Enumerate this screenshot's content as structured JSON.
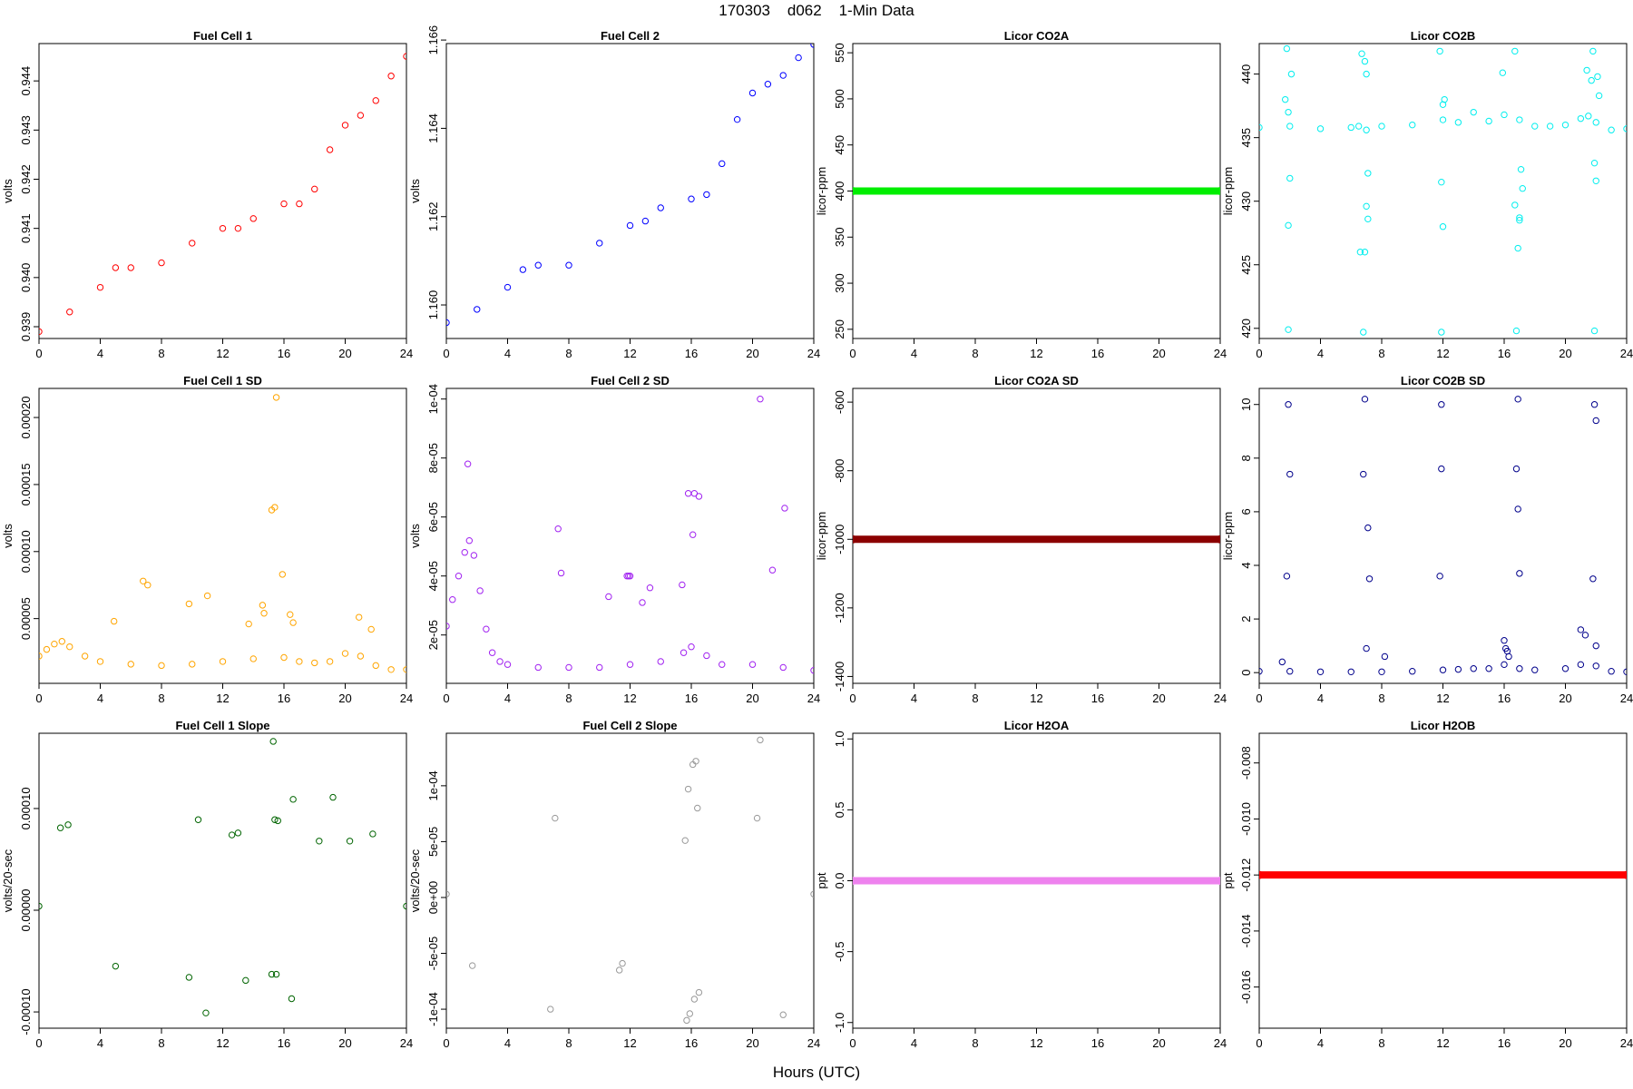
{
  "header": {
    "title": "170303    d062    1-Min Data"
  },
  "x_axis_label": "Hours (UTC)",
  "chart_data": [
    {
      "id": "fc1",
      "title": "Fuel Cell 1",
      "type": "scatter",
      "ylabel": "volts",
      "color": "#ff0000",
      "filled": false,
      "xlim": [
        0,
        24
      ],
      "xticks": [
        "0",
        "4",
        "8",
        "12",
        "16",
        "20",
        "24"
      ],
      "ylim": [
        0.93876,
        0.94476
      ],
      "yticks": [
        "0.939",
        "0.940",
        "0.941",
        "0.942",
        "0.943",
        "0.944"
      ],
      "series": [
        {
          "x": [
            0,
            2,
            4,
            5,
            6,
            8,
            10,
            12,
            13,
            14,
            16,
            17,
            18,
            19,
            20,
            21,
            22,
            23,
            24
          ],
          "values": [
            0.9389,
            0.9393,
            0.9398,
            0.9402,
            0.9402,
            0.9403,
            0.9407,
            0.941,
            0.941,
            0.9412,
            0.9415,
            0.9415,
            0.9418,
            0.9426,
            0.9431,
            0.9433,
            0.9436,
            0.9441,
            0.9445
          ]
        }
      ]
    },
    {
      "id": "fc2",
      "title": "Fuel Cell 2",
      "type": "scatter",
      "ylabel": "volts",
      "color": "#0000ff",
      "filled": false,
      "xlim": [
        0,
        24
      ],
      "xticks": [
        "0",
        "4",
        "8",
        "12",
        "16",
        "20",
        "24"
      ],
      "ylim": [
        1.15924,
        1.16592
      ],
      "yticks": [
        "1.160",
        "1.162",
        "1.164",
        "1.166"
      ],
      "series": [
        {
          "x": [
            0,
            2,
            4,
            5,
            6,
            8,
            10,
            12,
            13,
            14,
            16,
            17,
            18,
            19,
            20,
            21,
            22,
            23,
            24
          ],
          "values": [
            1.1596,
            1.1599,
            1.1604,
            1.1608,
            1.1609,
            1.1609,
            1.1614,
            1.1618,
            1.1619,
            1.1622,
            1.1624,
            1.1625,
            1.1632,
            1.1642,
            1.1648,
            1.165,
            1.1652,
            1.1656,
            1.1659
          ]
        }
      ]
    },
    {
      "id": "co2a",
      "title": "Licor CO2A",
      "type": "scatter",
      "ylabel": "licor-ppm",
      "color": "#00ee00",
      "filled": true,
      "xlim": [
        0,
        24
      ],
      "xticks": [
        "0",
        "4",
        "8",
        "12",
        "16",
        "20",
        "24"
      ],
      "ylim": [
        240,
        560
      ],
      "yticks": [
        "250",
        "300",
        "350",
        "400",
        "450",
        "500",
        "550"
      ],
      "series": [
        {
          "x": [
            0,
            24
          ],
          "values": [
            400,
            400
          ]
        }
      ]
    },
    {
      "id": "co2b",
      "title": "Licor CO2B",
      "type": "scatter",
      "ylabel": "licor-ppm",
      "color": "#00eeee",
      "filled": false,
      "xlim": [
        0,
        24
      ],
      "xticks": [
        "0",
        "4",
        "8",
        "12",
        "16",
        "20",
        "24"
      ],
      "ylim": [
        419.2,
        442.4
      ],
      "yticks": [
        "420",
        "425",
        "430",
        "435",
        "440"
      ],
      "series": [
        {
          "x": [
            0,
            2,
            4,
            6,
            6.5,
            7,
            8,
            10,
            12,
            13,
            14,
            15,
            16,
            17,
            18,
            19,
            20,
            21,
            21.5,
            22,
            23,
            24
          ],
          "values": [
            435.8,
            435.9,
            435.7,
            435.8,
            435.9,
            435.6,
            435.9,
            436.0,
            436.4,
            436.2,
            437.0,
            436.3,
            436.8,
            436.4,
            435.9,
            435.9,
            436.0,
            436.5,
            436.7,
            436.2,
            435.6,
            435.7
          ]
        },
        {
          "x": [
            1.8,
            1.9,
            2.0,
            1.9,
            6.7,
            6.8,
            6.9,
            7.0,
            7.1,
            11.8,
            11.9,
            12.0,
            16.7,
            16.8,
            16.9,
            17.0,
            21.8,
            21.9,
            22.0,
            22.1,
            1.7,
            1.9,
            6.9,
            12.0,
            17.1,
            21.7,
            21.9,
            6.6,
            16.7,
            7.0,
            11.9,
            17.0,
            17.2,
            2.1,
            7.1,
            12.1,
            15.9,
            21.4,
            22.2
          ],
          "values": [
            442,
            419.9,
            431.8,
            428.1,
            441.6,
            419.7,
            426,
            429.6,
            428.6,
            441.8,
            419.7,
            428,
            441.8,
            419.8,
            426.3,
            428.7,
            441.8,
            419.8,
            431.6,
            439.8,
            438,
            437,
            441,
            437.6,
            432.5,
            439.5,
            433,
            426,
            429.7,
            440,
            431.5,
            428.5,
            431,
            440,
            432.2,
            438,
            440.1,
            440.3,
            438.3
          ]
        }
      ]
    },
    {
      "id": "fc1sd",
      "title": "Fuel Cell 1 SD",
      "type": "scatter",
      "ylabel": "volts",
      "color": "#ffa500",
      "filled": false,
      "xlim": [
        0,
        24
      ],
      "xticks": [
        "0",
        "4",
        "8",
        "12",
        "16",
        "20",
        "24"
      ],
      "ylim": [
        1.7e-06,
        0.0002217
      ],
      "yticks": [
        "0.00005",
        "0.00010",
        "0.00015",
        "0.00020"
      ],
      "series": [
        {
          "x": [
            0,
            0.5,
            1,
            1.5,
            2,
            3,
            4,
            6,
            8,
            10,
            12,
            14,
            16,
            17,
            18,
            19,
            20,
            21,
            22,
            23,
            24
          ],
          "values": [
            2.2e-05,
            2.7e-05,
            3.1e-05,
            3.3e-05,
            2.9e-05,
            2.2e-05,
            1.8e-05,
            1.6e-05,
            1.5e-05,
            1.6e-05,
            1.8e-05,
            2e-05,
            2.1e-05,
            1.8e-05,
            1.7e-05,
            1.8e-05,
            2.4e-05,
            2.2e-05,
            1.5e-05,
            1.2e-05,
            1.2e-05
          ]
        },
        {
          "x": [
            15.5,
            15.2,
            15.4,
            15.9,
            6.8,
            7.1,
            11,
            14.6,
            16.4,
            16.6,
            13.7,
            9.8,
            4.9,
            20.9,
            21.7,
            14.7
          ],
          "values": [
            0.000215,
            0.000131,
            0.000133,
            8.3e-05,
            7.8e-05,
            7.5e-05,
            6.7e-05,
            6e-05,
            5.3e-05,
            4.7e-05,
            4.6e-05,
            6.1e-05,
            4.8e-05,
            5.1e-05,
            4.2e-05,
            5.4e-05
          ]
        }
      ]
    },
    {
      "id": "fc2sd",
      "title": "Fuel Cell 2 SD",
      "type": "scatter",
      "ylabel": "volts",
      "color": "#a020f0",
      "filled": false,
      "xlim": [
        0,
        24
      ],
      "xticks": [
        "0",
        "4",
        "8",
        "12",
        "16",
        "20",
        "24"
      ],
      "ylim": [
        3.6e-06,
        0.0001036
      ],
      "yticks": [
        "2e-05",
        "4e-05",
        "6e-05",
        "8e-05",
        "1e-04"
      ],
      "series": [
        {
          "x": [
            0,
            0.4,
            0.8,
            1.2,
            1.5,
            1.8,
            2.2,
            2.6,
            3,
            3.5,
            4,
            6,
            8,
            10,
            12,
            14,
            15.5,
            16,
            17,
            18,
            20,
            22,
            24
          ],
          "values": [
            2.3e-05,
            3.2e-05,
            4e-05,
            4.8e-05,
            5.2e-05,
            4.7e-05,
            3.5e-05,
            2.2e-05,
            1.4e-05,
            1.1e-05,
            1e-05,
            9e-06,
            9e-06,
            9e-06,
            1e-05,
            1.1e-05,
            1.4e-05,
            1.6e-05,
            1.3e-05,
            1e-05,
            1e-05,
            9e-06,
            8e-06
          ]
        },
        {
          "x": [
            20.5,
            1.4,
            15.8,
            16.2,
            16.5,
            7.3,
            7.5,
            16.1,
            22.1,
            21.3,
            13.3,
            11.8,
            11.9,
            12,
            12.8,
            10.6,
            15.4
          ],
          "values": [
            0.0001,
            7.8e-05,
            6.8e-05,
            6.8e-05,
            6.7e-05,
            5.6e-05,
            4.1e-05,
            5.4e-05,
            6.3e-05,
            4.2e-05,
            3.6e-05,
            4e-05,
            4e-05,
            4e-05,
            3.1e-05,
            3.3e-05,
            3.7e-05
          ]
        }
      ]
    },
    {
      "id": "co2asd",
      "title": "Licor CO2A SD",
      "type": "scatter",
      "ylabel": "licor-ppm",
      "color": "#8b0000",
      "filled": true,
      "xlim": [
        0,
        24
      ],
      "xticks": [
        "0",
        "4",
        "8",
        "12",
        "16",
        "20",
        "24"
      ],
      "ylim": [
        -1420,
        -560
      ],
      "yticks": [
        "-1400",
        "-1200",
        "-1000",
        "-800",
        "-600"
      ],
      "series": [
        {
          "x": [
            0,
            24
          ],
          "values": [
            -1000,
            -1000
          ]
        }
      ]
    },
    {
      "id": "co2bsd",
      "title": "Licor CO2B SD",
      "type": "scatter",
      "ylabel": "licor-ppm",
      "color": "#00008b",
      "filled": false,
      "xlim": [
        0,
        24
      ],
      "xticks": [
        "0",
        "4",
        "8",
        "12",
        "16",
        "20",
        "24"
      ],
      "ylim": [
        -0.4,
        10.6
      ],
      "yticks": [
        "0",
        "2",
        "4",
        "6",
        "8",
        "10"
      ],
      "series": [
        {
          "x": [
            0,
            2,
            4,
            6,
            8,
            10,
            12,
            13,
            14,
            15,
            16,
            17,
            18,
            20,
            21,
            22,
            23,
            24
          ],
          "values": [
            0.05,
            0.05,
            0.03,
            0.03,
            0.03,
            0.05,
            0.1,
            0.12,
            0.15,
            0.15,
            0.3,
            0.15,
            0.1,
            0.15,
            0.3,
            0.25,
            0.05,
            0.03
          ]
        },
        {
          "x": [
            1.9,
            6.9,
            11.9,
            16.9,
            21.9,
            2.0,
            6.8,
            11.9,
            16.8,
            22.0,
            7.1,
            16.9,
            1.8,
            7.2,
            11.8,
            17.0,
            21.8,
            7.0,
            16.0,
            16.2,
            21.0,
            21.3,
            16.1,
            22.0,
            16.3,
            8.2,
            1.5
          ],
          "values": [
            10.0,
            10.2,
            10.0,
            10.2,
            10.0,
            7.4,
            7.4,
            7.6,
            7.6,
            9.4,
            5.4,
            6.1,
            3.6,
            3.5,
            3.6,
            3.7,
            3.5,
            0.9,
            1.2,
            0.8,
            1.6,
            1.4,
            0.9,
            1.0,
            0.6,
            0.6,
            0.4
          ]
        }
      ]
    },
    {
      "id": "fc1slope",
      "title": "Fuel Cell 1 Slope",
      "type": "scatter",
      "ylabel": "volts/20-sec",
      "color": "#006400",
      "filled": false,
      "xlim": [
        0,
        24
      ],
      "xticks": [
        "0",
        "4",
        "8",
        "12",
        "16",
        "20",
        "24"
      ],
      "ylim": [
        -0.000116,
        0.000174
      ],
      "yticks": [
        "-0.00010",
        "0.00000",
        "0.00010"
      ],
      "series": [
        {
          "x": [
            0,
            24
          ],
          "values": [
            4e-06,
            4e-06
          ]
        },
        {
          "x": [
            15.3,
            16.6,
            19.2,
            10.9,
            16.5,
            1.4,
            1.9,
            10.4,
            15.4,
            15.6,
            21.8,
            12.6,
            5,
            9.8,
            13.5,
            15.2,
            15.5,
            20.3,
            18.3,
            13
          ],
          "values": [
            0.000166,
            0.000109,
            0.000111,
            -0.000101,
            -8.7e-05,
            8.1e-05,
            8.4e-05,
            8.9e-05,
            8.9e-05,
            8.8e-05,
            7.5e-05,
            7.4e-05,
            -5.5e-05,
            -6.6e-05,
            -6.9e-05,
            -6.3e-05,
            -6.3e-05,
            6.8e-05,
            6.8e-05,
            7.6e-05
          ]
        }
      ]
    },
    {
      "id": "fc2slope",
      "title": "Fuel Cell 2 Slope",
      "type": "scatter",
      "ylabel": "volts/20-sec",
      "color": "#999999",
      "filled": false,
      "xlim": [
        0,
        24
      ],
      "xticks": [
        "0",
        "4",
        "8",
        "12",
        "16",
        "20",
        "24"
      ],
      "ylim": [
        -0.000117,
        0.000147
      ],
      "yticks": [
        "-1e-04",
        "-5e-05",
        "0e+00",
        "5e-05",
        "1e-04"
      ],
      "series": [
        {
          "x": [
            0,
            24
          ],
          "values": [
            3e-06,
            3e-06
          ]
        },
        {
          "x": [
            20.5,
            16.3,
            16.1,
            15.8,
            16.4,
            15.9,
            7.1,
            6.8,
            15.7,
            22.0,
            16.5,
            1.7,
            16.2,
            15.6,
            11.3,
            11.5,
            20.3
          ],
          "values": [
            0.000141,
            0.000122,
            0.000119,
            9.7e-05,
            8e-05,
            -0.000104,
            7.1e-05,
            -0.0001,
            -0.00011,
            -0.000105,
            -8.5e-05,
            -6.1e-05,
            -9.1e-05,
            5.1e-05,
            -6.5e-05,
            -5.9e-05,
            7.1e-05
          ]
        }
      ]
    },
    {
      "id": "h2oa",
      "title": "Licor H2OA",
      "type": "scatter",
      "ylabel": "ppt",
      "color": "#ee82ee",
      "filled": true,
      "xlim": [
        0,
        24
      ],
      "xticks": [
        "0",
        "4",
        "8",
        "12",
        "16",
        "20",
        "24"
      ],
      "ylim": [
        -1.04,
        1.04
      ],
      "yticks": [
        "-1.0",
        "-0.5",
        "0.0",
        "0.5",
        "1.0"
      ],
      "series": [
        {
          "x": [
            0,
            24
          ],
          "values": [
            0,
            0
          ]
        }
      ]
    },
    {
      "id": "h2ob",
      "title": "Licor H2OB",
      "type": "scatter",
      "ylabel": "ppt",
      "color": "#ff0000",
      "filled": true,
      "xlim": [
        0,
        24
      ],
      "xticks": [
        "0",
        "4",
        "8",
        "12",
        "16",
        "20",
        "24"
      ],
      "ylim": [
        -0.01747,
        -0.00694
      ],
      "yticks": [
        "-0.016",
        "-0.014",
        "-0.012",
        "-0.010",
        "-0.008"
      ],
      "series": [
        {
          "x": [
            0,
            24
          ],
          "values": [
            -0.012,
            -0.012
          ]
        }
      ]
    }
  ]
}
